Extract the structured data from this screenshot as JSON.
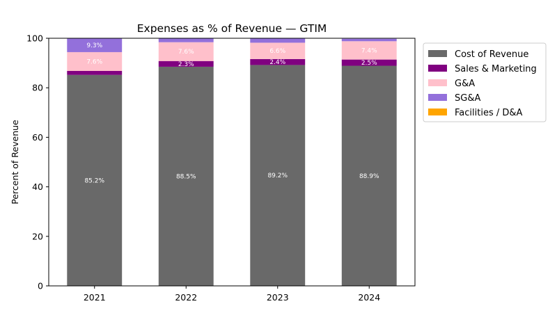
{
  "chart_data": {
    "type": "bar",
    "stacked": true,
    "title": "Expenses as % of Revenue — GTIM",
    "xlabel": "",
    "ylabel": "Percent of Revenue",
    "ylim": [
      0,
      100
    ],
    "yticks": [
      0,
      20,
      40,
      60,
      80,
      100
    ],
    "categories": [
      "2021",
      "2022",
      "2023",
      "2024"
    ],
    "legend_position": "outside-right",
    "series": [
      {
        "name": "Cost of Revenue",
        "color": "#696969",
        "values": [
          85.2,
          88.5,
          89.2,
          88.9
        ],
        "labels": [
          "85.2%",
          "88.5%",
          "89.2%",
          "88.9%"
        ]
      },
      {
        "name": "Sales & Marketing",
        "color": "#800080",
        "values": [
          1.6,
          2.3,
          2.4,
          2.5
        ],
        "labels": [
          "",
          "2.3%",
          "2.4%",
          "2.5%"
        ]
      },
      {
        "name": "G&A",
        "color": "#ffc0cb",
        "values": [
          7.6,
          7.6,
          6.6,
          7.4
        ],
        "labels": [
          "7.6%",
          "7.6%",
          "6.6%",
          "7.4%"
        ]
      },
      {
        "name": "SG&A",
        "color": "#9370db",
        "values": [
          9.3,
          1.5,
          1.8,
          1.0
        ],
        "labels": [
          "9.3%",
          "",
          "",
          ""
        ]
      },
      {
        "name": "Facilities / D&A",
        "color": "#ffa500",
        "values": [
          0,
          0,
          0,
          0
        ],
        "labels": [
          "",
          "",
          "",
          ""
        ]
      }
    ]
  }
}
